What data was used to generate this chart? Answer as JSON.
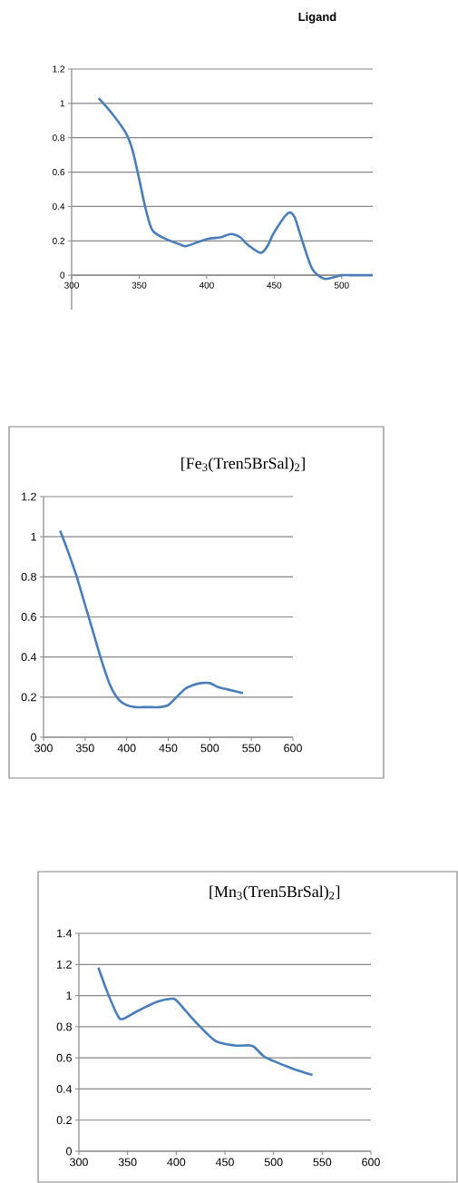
{
  "chart_data": [
    {
      "type": "line",
      "title": "**Ligand**",
      "x": [
        320,
        330,
        340,
        345,
        350,
        355,
        360,
        370,
        380,
        385,
        400,
        410,
        418,
        425,
        430,
        440,
        445,
        450,
        460,
        465,
        470,
        478,
        487,
        495,
        500,
        510,
        523
      ],
      "series": [
        {
          "color": "#4a7ebb",
          "values": [
            1.03,
            0.94,
            0.83,
            0.73,
            0.56,
            0.38,
            0.26,
            0.21,
            0.18,
            0.17,
            0.21,
            0.22,
            0.24,
            0.22,
            0.18,
            0.13,
            0.17,
            0.25,
            0.36,
            0.34,
            0.22,
            0.04,
            -0.02,
            -0.01,
            0,
            0,
            0
          ]
        }
      ],
      "xlim": [
        300,
        523
      ],
      "ylim": [
        -0.2,
        1.2
      ],
      "xticks": [
        300,
        350,
        400,
        450,
        500
      ],
      "yticks": [
        0,
        0.2,
        0.4,
        0.6,
        0.8,
        1,
        1.2
      ],
      "grid": "y"
    },
    {
      "type": "line",
      "title": "[Fe$_{3}$(Tren5BrSal)$_{2}$]",
      "x": [
        320,
        330,
        340,
        350,
        360,
        370,
        380,
        390,
        400,
        410,
        420,
        430,
        440,
        450,
        460,
        470,
        480,
        490,
        500,
        510,
        520,
        530,
        540
      ],
      "series": [
        {
          "color": "#4a7ebb",
          "values": [
            1.03,
            0.92,
            0.8,
            0.66,
            0.52,
            0.38,
            0.26,
            0.19,
            0.16,
            0.15,
            0.15,
            0.15,
            0.15,
            0.16,
            0.2,
            0.24,
            0.26,
            0.27,
            0.27,
            0.25,
            0.24,
            0.23,
            0.22
          ]
        }
      ],
      "xlim": [
        300,
        600
      ],
      "ylim": [
        0,
        1.2
      ],
      "xticks": [
        300,
        350,
        400,
        450,
        500,
        550,
        600
      ],
      "yticks": [
        0,
        0.2,
        0.4,
        0.6,
        0.8,
        1,
        1.2
      ],
      "grid": "y"
    },
    {
      "type": "line",
      "title": "[Mn$_{3}$(Tren5BrSal)$_{2}$]",
      "x": [
        320,
        330,
        340,
        345,
        360,
        380,
        395,
        400,
        410,
        420,
        440,
        460,
        475,
        480,
        490,
        500,
        520,
        540
      ],
      "series": [
        {
          "color": "#4a7ebb",
          "values": [
            1.18,
            1.01,
            0.87,
            0.85,
            0.9,
            0.96,
            0.98,
            0.97,
            0.9,
            0.83,
            0.71,
            0.68,
            0.68,
            0.67,
            0.61,
            0.58,
            0.53,
            0.49
          ]
        }
      ],
      "xlim": [
        300,
        600
      ],
      "ylim": [
        0,
        1.4
      ],
      "xticks": [
        300,
        350,
        400,
        450,
        500,
        550,
        600
      ],
      "yticks": [
        0,
        0.2,
        0.4,
        0.6,
        0.8,
        1,
        1.2,
        1.4
      ],
      "grid": "y"
    }
  ]
}
